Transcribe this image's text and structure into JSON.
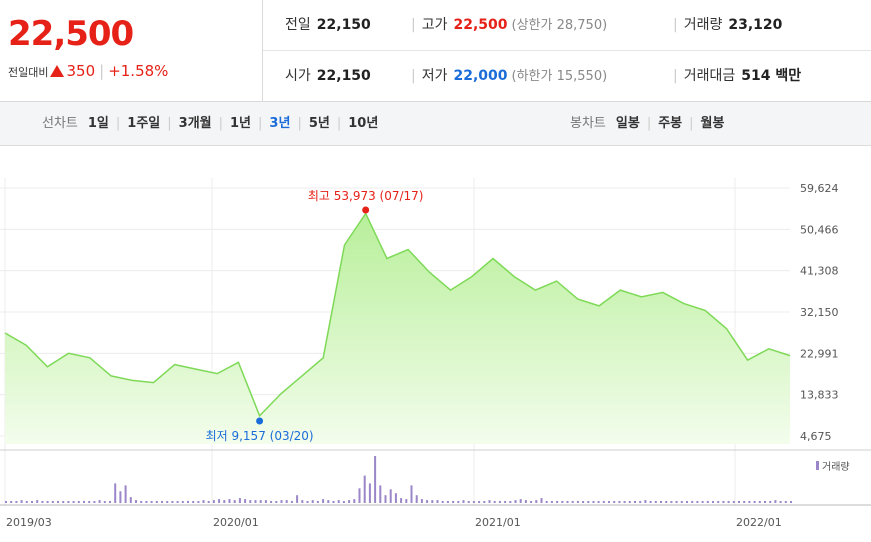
{
  "quote": {
    "price": "22,500",
    "change_label": "전일대비",
    "change": "350",
    "change_pct": "+1.58%",
    "prev_close_label": "전일",
    "prev_close": "22,150",
    "high_label": "고가",
    "high": "22,500",
    "upper_limit": "(상한가 28,750)",
    "volume_label": "거래량",
    "volume": "23,120",
    "open_label": "시가",
    "open": "22,150",
    "low_label": "저가",
    "low": "22,000",
    "lower_limit": "(하한가 15,550)",
    "amount_label": "거래대금",
    "amount": "514 백만"
  },
  "tabs": {
    "line_label": "선차트",
    "line_items": [
      "1일",
      "1주일",
      "3개월",
      "1년",
      "3년",
      "5년",
      "10년"
    ],
    "line_active": 4,
    "candle_label": "봉차트",
    "candle_items": [
      "일봉",
      "주봉",
      "월봉"
    ]
  },
  "chart_data": {
    "type": "area",
    "x_tick_labels": [
      "2019/03",
      "2020/01",
      "2021/01",
      "2022/01"
    ],
    "y_tick_labels": [
      "59,624",
      "50,466",
      "41,308",
      "32,150",
      "22,991",
      "13,833",
      "4,675"
    ],
    "ylim": [
      4675,
      59624
    ],
    "max_annotation": "최고 53,973 (07/17)",
    "min_annotation": "최저 9,157 (03/20)",
    "max_value": 53973,
    "min_value": 9157,
    "volume_legend": "거래량",
    "colors": {
      "line": "#7ed957",
      "fill_top": "#b8ef9a",
      "fill_bottom": "#f3fdec",
      "volume": "#9a86c8",
      "max": "#e62117",
      "min": "#1a6dd8"
    },
    "price_series": [
      [
        "2019/03",
        27500
      ],
      [
        "2019/04",
        24800
      ],
      [
        "2019/05",
        20000
      ],
      [
        "2019/06",
        23000
      ],
      [
        "2019/07",
        22000
      ],
      [
        "2019/08",
        18000
      ],
      [
        "2019/09",
        17000
      ],
      [
        "2019/10",
        16500
      ],
      [
        "2019/11",
        20500
      ],
      [
        "2019/12",
        19500
      ],
      [
        "2020/01",
        18500
      ],
      [
        "2020/02",
        21000
      ],
      [
        "2020/03",
        9157
      ],
      [
        "2020/04",
        14000
      ],
      [
        "2020/05",
        18000
      ],
      [
        "2020/06",
        22000
      ],
      [
        "2020/07",
        47000
      ],
      [
        "2020/07/17",
        53973
      ],
      [
        "2020/08",
        44000
      ],
      [
        "2020/09",
        46000
      ],
      [
        "2020/10",
        41000
      ],
      [
        "2020/11",
        37000
      ],
      [
        "2020/12",
        40000
      ],
      [
        "2021/01",
        44000
      ],
      [
        "2021/02",
        40000
      ],
      [
        "2021/03",
        37000
      ],
      [
        "2021/04",
        39000
      ],
      [
        "2021/05",
        35000
      ],
      [
        "2021/06",
        33500
      ],
      [
        "2021/07",
        37000
      ],
      [
        "2021/08",
        35500
      ],
      [
        "2021/09",
        36500
      ],
      [
        "2021/10",
        34000
      ],
      [
        "2021/11",
        32500
      ],
      [
        "2021/12",
        28500
      ],
      [
        "2022/01",
        21500
      ],
      [
        "2022/02",
        24000
      ],
      [
        "2022/03",
        22500
      ]
    ],
    "volume_series": [
      2,
      2,
      2,
      3,
      2,
      2,
      3,
      2,
      2,
      2,
      2,
      2,
      2,
      2,
      2,
      2,
      2,
      2,
      3,
      2,
      2,
      20,
      12,
      18,
      6,
      3,
      2,
      2,
      2,
      2,
      2,
      2,
      2,
      2,
      2,
      2,
      2,
      2,
      3,
      2,
      3,
      4,
      3,
      4,
      3,
      5,
      4,
      3,
      3,
      3,
      3,
      2,
      2,
      3,
      3,
      2,
      8,
      3,
      2,
      3,
      2,
      4,
      3,
      2,
      3,
      2,
      3,
      4,
      15,
      28,
      20,
      48,
      18,
      8,
      14,
      10,
      5,
      4,
      18,
      8,
      4,
      3,
      3,
      3,
      2,
      2,
      2,
      2,
      3,
      2,
      2,
      2,
      2,
      3,
      2,
      2,
      2,
      2,
      3,
      4,
      3,
      2,
      3,
      5,
      2,
      2,
      2,
      2,
      2,
      2,
      2,
      2,
      2,
      2,
      2,
      2,
      2,
      2,
      2,
      2,
      2,
      2,
      2,
      3,
      2,
      2,
      2,
      2,
      2,
      2,
      2,
      2,
      2,
      2,
      2,
      2,
      2,
      2,
      2,
      2,
      2,
      2,
      2,
      2,
      2,
      2,
      2,
      2,
      3,
      2,
      2,
      2
    ]
  }
}
